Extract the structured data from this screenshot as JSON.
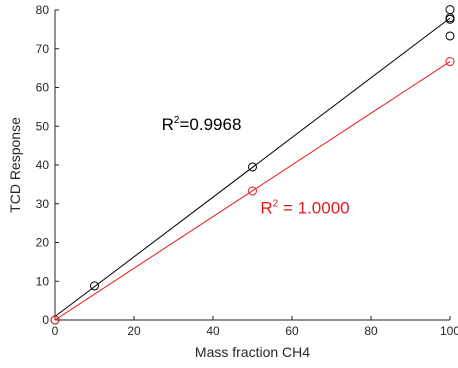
{
  "chart_data": {
    "type": "scatter",
    "xlabel": "Mass fraction CH4",
    "ylabel": "TCD Response",
    "xlim": [
      0,
      100
    ],
    "ylim": [
      0,
      80
    ],
    "xticks": [
      "0",
      "20",
      "40",
      "60",
      "80",
      "100"
    ],
    "yticks": [
      "0",
      "10",
      "20",
      "30",
      "40",
      "50",
      "60",
      "70",
      "80"
    ],
    "grid": false,
    "legend": "none",
    "series": [
      {
        "color": "#000000",
        "points": [
          {
            "x": 0,
            "y": 0
          },
          {
            "x": 10,
            "y": 8.8
          },
          {
            "x": 50,
            "y": 39.5
          },
          {
            "x": 100,
            "y": 73.3
          },
          {
            "x": 100,
            "y": 77.6
          },
          {
            "x": 100,
            "y": 78.0
          },
          {
            "x": 100,
            "y": 80.1
          }
        ],
        "fit": {
          "x": [
            0,
            100
          ],
          "y": [
            0.9,
            77.9
          ]
        },
        "annotation": {
          "base": "R",
          "sup": "2",
          "text": "=0.9968",
          "x": 27,
          "y": 49
        }
      },
      {
        "color": "#e8191d",
        "points": [
          {
            "x": 0,
            "y": 0
          },
          {
            "x": 50,
            "y": 33.3
          },
          {
            "x": 100,
            "y": 66.7
          }
        ],
        "fit": {
          "x": [
            0,
            100
          ],
          "y": [
            0,
            66.7
          ]
        },
        "annotation": {
          "base": "R",
          "sup": "2",
          "text": " = 1.0000",
          "x": 52,
          "y": 27.5
        }
      }
    ]
  }
}
